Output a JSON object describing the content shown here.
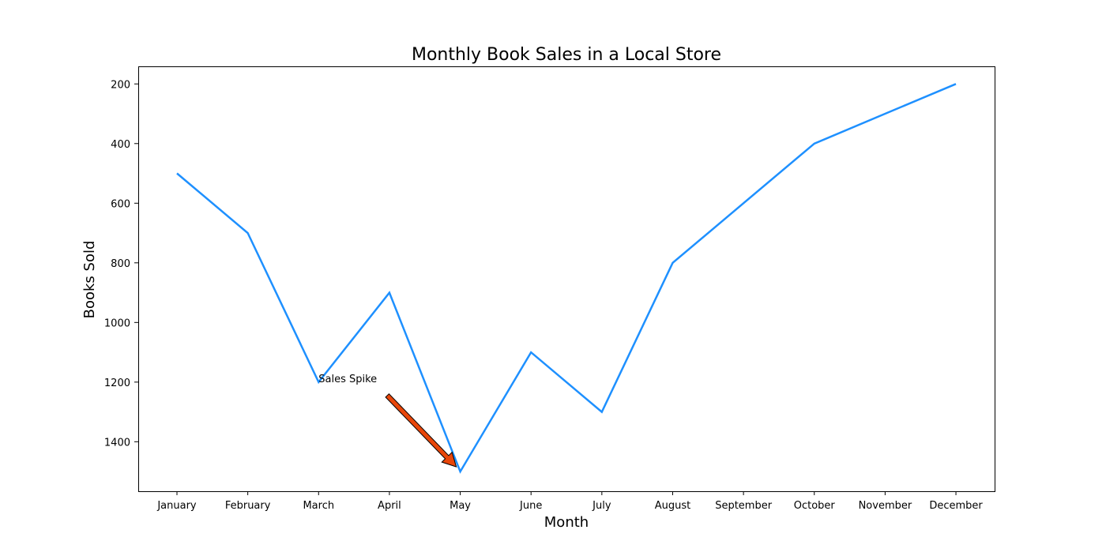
{
  "chart_data": {
    "type": "line",
    "title": "Monthly Book Sales in a Local Store",
    "xlabel": "Month",
    "ylabel": "Books Sold",
    "categories": [
      "January",
      "February",
      "March",
      "April",
      "May",
      "June",
      "July",
      "August",
      "September",
      "October",
      "November",
      "December"
    ],
    "series": [
      {
        "values": [
          500,
          700,
          1200,
          900,
          1500,
          1100,
          1300,
          800,
          600,
          400,
          300,
          200
        ],
        "color": "#1e90ff"
      }
    ],
    "y_axis": {
      "inverted": true,
      "ylim": [
        141,
        1566
      ],
      "ticks": [
        200,
        400,
        600,
        800,
        1000,
        1200,
        1400
      ]
    },
    "grid": false,
    "legend": "none",
    "annotation": {
      "text": "Sales Spike",
      "target_category": "May",
      "target_value": 1500,
      "text_category": "March",
      "text_value": 1200,
      "arrow_color": "#e8460a"
    }
  }
}
